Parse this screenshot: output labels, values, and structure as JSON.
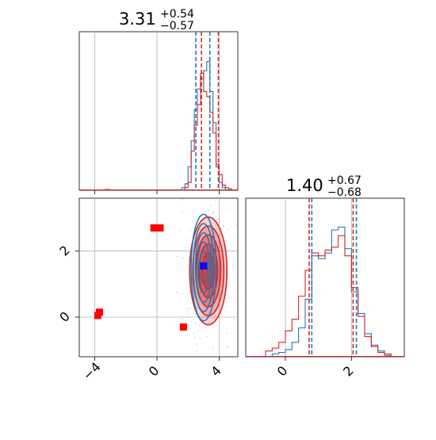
{
  "chart_data": [
    {
      "type": "histogram",
      "panel": "marginal-param-1",
      "title": {
        "value": "3.31",
        "plus": "+0.54",
        "minus": "−0.57"
      },
      "xlim": [
        -5,
        5.2
      ],
      "ylim": [
        0,
        1
      ],
      "grid": true,
      "bins": [
        1.6,
        1.8,
        2.0,
        2.2,
        2.4,
        2.6,
        2.8,
        3.0,
        3.2,
        3.4,
        3.6,
        3.8,
        4.0,
        4.2,
        4.4,
        4.6,
        4.8,
        5.0
      ],
      "series": [
        {
          "color": "#1f77b4",
          "counts": [
            0.02,
            0.05,
            0.18,
            0.38,
            0.62,
            0.78,
            0.86,
            0.92,
            0.99,
            0.76,
            0.52,
            0.18,
            0.06,
            0.02,
            0.0,
            0.0,
            0.0
          ],
          "quantiles": [
            2.5,
            3.4
          ]
        },
        {
          "color": "#d62728",
          "counts": [
            0.0,
            0.02,
            0.06,
            0.3,
            0.5,
            0.66,
            0.9,
            0.76,
            0.72,
            0.6,
            0.44,
            0.2,
            0.12,
            0.04,
            0.02,
            0.01,
            0.0
          ],
          "quantiles": [
            2.86,
            3.95
          ]
        }
      ],
      "outlier_ticks": [
        -3.2
      ]
    },
    {
      "type": "contour",
      "panel": "joint",
      "xlim": [
        -5,
        5.2
      ],
      "ylim": [
        -1.2,
        3.6
      ],
      "xticks": [
        -4,
        0,
        4
      ],
      "yticks": [
        0,
        2
      ],
      "grid": true,
      "series": [
        {
          "color": "#1f77b4",
          "center": [
            3.0,
            1.5
          ],
          "sigma": [
            0.35,
            0.7
          ]
        },
        {
          "color": "#d62728",
          "center": [
            3.3,
            1.4
          ],
          "sigma": [
            0.5,
            0.68
          ]
        }
      ],
      "markers": [
        {
          "color": "#ff0000",
          "points": [
            [
              -0.2,
              2.7
            ],
            [
              0.2,
              2.7
            ],
            [
              -3.7,
              0.15
            ],
            [
              -3.8,
              0.05
            ],
            [
              1.7,
              -0.3
            ]
          ]
        },
        {
          "color": "#0000ff",
          "points": [
            [
              3.0,
              1.55
            ]
          ]
        }
      ]
    },
    {
      "type": "histogram",
      "panel": "marginal-param-2",
      "title": {
        "value": "1.40",
        "plus": "+0.67",
        "minus": "−0.68"
      },
      "xlim": [
        -1.2,
        3.6
      ],
      "ylim": [
        0,
        1
      ],
      "xticks": [
        0,
        2
      ],
      "grid": true,
      "bins": [
        -0.6,
        -0.4,
        -0.2,
        0.0,
        0.2,
        0.4,
        0.6,
        0.8,
        1.0,
        1.2,
        1.4,
        1.6,
        1.8,
        2.0,
        2.2,
        2.4,
        2.6,
        2.8,
        3.0,
        3.2
      ],
      "series": [
        {
          "color": "#1f77b4",
          "counts": [
            0.0,
            0.02,
            0.03,
            0.05,
            0.1,
            0.2,
            0.4,
            0.7,
            0.68,
            0.72,
            0.88,
            0.9,
            0.75,
            0.45,
            0.3,
            0.16,
            0.08,
            0.04,
            0.01
          ],
          "quantiles": [
            0.8,
            2.15
          ]
        },
        {
          "color": "#d62728",
          "counts": [
            0.04,
            0.06,
            0.1,
            0.18,
            0.26,
            0.42,
            0.6,
            0.72,
            0.7,
            0.74,
            0.76,
            0.84,
            0.7,
            0.48,
            0.28,
            0.14,
            0.07,
            0.03,
            0.02
          ],
          "quantiles": [
            0.72,
            2.05
          ]
        }
      ]
    }
  ]
}
